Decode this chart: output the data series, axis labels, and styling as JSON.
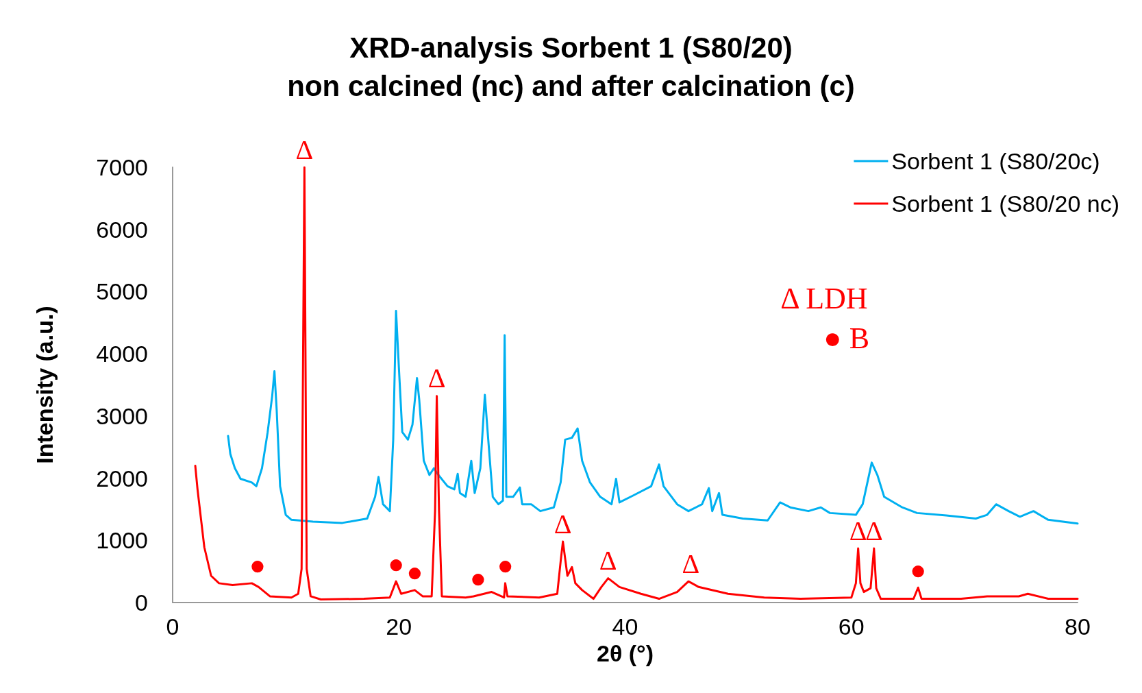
{
  "chart_data": {
    "type": "line",
    "title": "XRD-analysis Sorbent 1 (S80/20)\nnon calcined (nc) and after calcination (c)",
    "xlabel": "2θ (°)",
    "ylabel": "Intensity (a.u.)",
    "xlim": [
      0,
      80
    ],
    "xticks": [
      0,
      20,
      40,
      60,
      80
    ],
    "ylim": [
      0,
      7000
    ],
    "yticks": [
      0,
      1000,
      2000,
      3000,
      4000,
      5000,
      6000,
      7000
    ],
    "grid": false,
    "legend": "top right",
    "marker": "none",
    "line_style": "solid",
    "series": [
      {
        "name": "Sorbent 1 (S80/20c)",
        "color": "#00b0f0",
        "x": [
          4.9,
          5.1,
          5.5,
          6.0,
          7.0,
          7.4,
          7.9,
          8.4,
          8.8,
          9.0,
          9.2,
          9.5,
          10.0,
          10.5,
          12.4,
          15.0,
          17.2,
          17.9,
          18.2,
          18.6,
          19.2,
          19.5,
          19.75,
          20.0,
          20.3,
          20.8,
          21.2,
          21.6,
          21.8,
          22.2,
          22.7,
          23.1,
          23.5,
          24.3,
          24.9,
          25.2,
          25.4,
          25.9,
          26.4,
          26.7,
          27.2,
          27.6,
          27.9,
          28.3,
          28.8,
          29.2,
          29.35,
          29.5,
          30.1,
          30.7,
          30.9,
          31.7,
          32.5,
          33.7,
          34.3,
          34.7,
          35.3,
          35.8,
          36.2,
          36.9,
          37.8,
          38.8,
          39.2,
          39.5,
          40.7,
          42.3,
          43.0,
          43.4,
          44.6,
          45.6,
          46.8,
          47.4,
          47.7,
          48.3,
          48.6,
          50.4,
          52.6,
          53.7,
          54.6,
          56.2,
          57.3,
          58.1,
          60.4,
          61.0,
          61.8,
          62.3,
          62.9,
          64.5,
          65.8,
          68.4,
          71.0,
          72.0,
          72.8,
          73.9,
          74.9,
          76.1,
          77.4,
          80.0
        ],
        "values": [
          2680,
          2390,
          2160,
          1990,
          1930,
          1870,
          2160,
          2740,
          3320,
          3720,
          3090,
          1870,
          1410,
          1330,
          1300,
          1280,
          1350,
          1700,
          2020,
          1580,
          1470,
          2620,
          4690,
          3780,
          2740,
          2620,
          2860,
          3610,
          3260,
          2280,
          2050,
          2160,
          2050,
          1870,
          1820,
          2070,
          1760,
          1700,
          2280,
          1760,
          2160,
          3340,
          2620,
          1700,
          1580,
          1640,
          4300,
          1700,
          1700,
          1850,
          1580,
          1580,
          1470,
          1530,
          1930,
          2620,
          2650,
          2800,
          2280,
          1930,
          1700,
          1580,
          1990,
          1610,
          1720,
          1870,
          2220,
          1870,
          1580,
          1470,
          1580,
          1840,
          1470,
          1760,
          1410,
          1350,
          1320,
          1610,
          1530,
          1470,
          1530,
          1440,
          1410,
          1580,
          2250,
          2050,
          1700,
          1530,
          1440,
          1400,
          1350,
          1410,
          1580,
          1470,
          1380,
          1470,
          1330,
          1270
        ]
      },
      {
        "name": "Sorbent 1 (S80/20 nc)",
        "color": "#ff0000",
        "x": [
          2.0,
          2.2,
          2.8,
          3.4,
          4.1,
          5.3,
          7.0,
          7.6,
          8.6,
          10.5,
          11.1,
          11.4,
          11.65,
          11.85,
          12.2,
          13.1,
          16.9,
          19.2,
          19.75,
          20.2,
          21.4,
          22.1,
          22.9,
          23.2,
          23.35,
          23.55,
          23.8,
          25.9,
          26.6,
          28.2,
          29.3,
          29.4,
          29.6,
          32.4,
          34.0,
          34.3,
          34.5,
          34.9,
          35.3,
          35.6,
          36.2,
          37.2,
          37.9,
          38.5,
          39.5,
          41.4,
          43.0,
          44.6,
          45.6,
          46.5,
          49.1,
          52.3,
          55.5,
          60.0,
          60.4,
          60.6,
          60.8,
          61.1,
          61.7,
          62.0,
          62.2,
          62.6,
          65.5,
          65.9,
          66.2,
          69.7,
          72.0,
          74.8,
          75.6,
          77.4,
          80.0
        ],
        "values": [
          2200,
          1820,
          890,
          430,
          310,
          280,
          310,
          250,
          100,
          80,
          140,
          540,
          7000,
          540,
          100,
          50,
          60,
          80,
          340,
          140,
          200,
          100,
          100,
          1470,
          3320,
          1470,
          100,
          80,
          100,
          170,
          80,
          310,
          100,
          80,
          140,
          660,
          980,
          430,
          570,
          310,
          200,
          60,
          250,
          390,
          250,
          140,
          60,
          170,
          340,
          250,
          140,
          80,
          60,
          80,
          310,
          870,
          310,
          170,
          230,
          870,
          230,
          60,
          60,
          240,
          60,
          60,
          100,
          100,
          140,
          60,
          60
        ]
      }
    ],
    "annotations": [
      {
        "text": "Δ",
        "x": 11.65,
        "y": 7000
      },
      {
        "text": "Δ",
        "x": 23.35,
        "y": 3320
      },
      {
        "text": "Δ",
        "x": 34.5,
        "y": 980
      },
      {
        "text": "Δ",
        "x": 38.5,
        "y": 390
      },
      {
        "text": "Δ",
        "x": 45.8,
        "y": 340
      },
      {
        "text": "Δ",
        "x": 60.6,
        "y": 870
      },
      {
        "text": "Δ",
        "x": 62.0,
        "y": 870
      },
      {
        "text": "●",
        "x": 7.5,
        "y": 310
      },
      {
        "text": "●",
        "x": 19.75,
        "y": 340
      },
      {
        "text": "●",
        "x": 21.4,
        "y": 200
      },
      {
        "text": "●",
        "x": 27.0,
        "y": 100
      },
      {
        "text": "●",
        "x": 29.4,
        "y": 310
      },
      {
        "text": "●",
        "x": 65.9,
        "y": 240
      },
      "Δ LDH",
      "● B"
    ]
  }
}
